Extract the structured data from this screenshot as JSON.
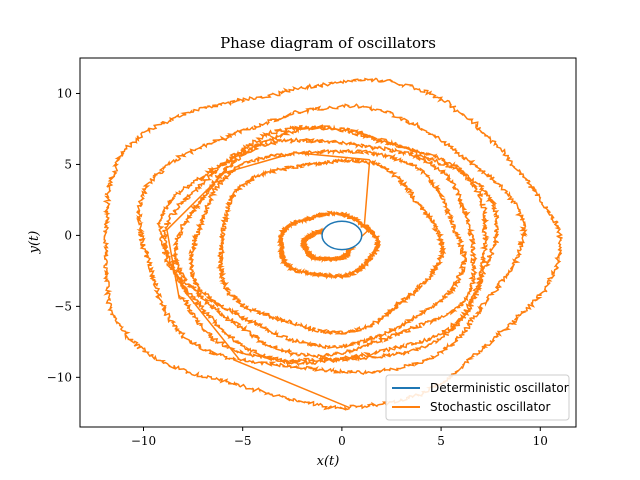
{
  "chart_data": {
    "type": "line",
    "title": "Phase diagram of oscillators",
    "xlabel": "x(t)",
    "ylabel": "y(t)",
    "xlim": [
      -13.2,
      11.8
    ],
    "ylim": [
      -13.5,
      12.5
    ],
    "xticks": [
      -10,
      -5,
      0,
      5,
      10
    ],
    "yticks": [
      -10,
      -5,
      0,
      5,
      10
    ],
    "xtick_labels": [
      "−10",
      "−5",
      "0",
      "5",
      "10"
    ],
    "ytick_labels": [
      "−10",
      "−5",
      "0",
      "5",
      "10"
    ],
    "grid": false,
    "legend": "lower-right",
    "series": [
      {
        "name": "Deterministic oscillator",
        "color": "#1f77b4",
        "kind": "circle",
        "center": [
          0,
          0
        ],
        "radius": 1.0
      },
      {
        "name": "Stochastic oscillator",
        "color": "#ff7f0e",
        "kind": "noisy-orbits",
        "center": [
          -0.7,
          -0.7
        ],
        "orbit_radii": [
          [
            1.2,
            1.0
          ],
          [
            2.5,
            2.2
          ],
          [
            5.5,
            6.0
          ],
          [
            6.8,
            6.8
          ],
          [
            7.4,
            7.6
          ],
          [
            8.0,
            8.0
          ],
          [
            8.6,
            8.4
          ],
          [
            9.3,
            9.0
          ],
          [
            11.2,
            11.2
          ]
        ]
      }
    ]
  }
}
